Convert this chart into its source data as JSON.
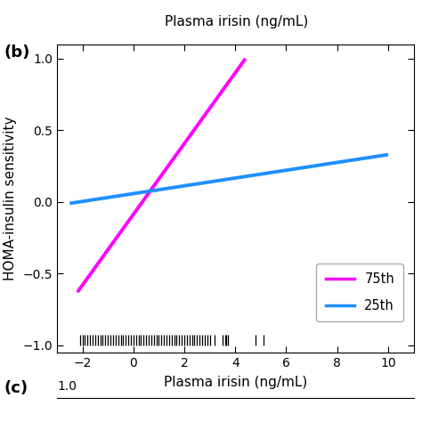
{
  "title_top": "Plasma irisin (ng/mL)",
  "xlabel": "Plasma irisin (ng/mL)",
  "ylabel": "HOMA-insulin sensitivity",
  "panel_label": "(b)",
  "xlim": [
    -3,
    11
  ],
  "ylim": [
    -1.05,
    1.1
  ],
  "xticks": [
    -2,
    0,
    2,
    4,
    6,
    8,
    10
  ],
  "yticks": [
    -1.0,
    -0.5,
    0.0,
    0.5,
    1.0
  ],
  "line_75th": {
    "x": [
      -2.2,
      4.4
    ],
    "y": [
      -0.63,
      1.0
    ],
    "color": "#FF00FF",
    "label": "75th",
    "linewidth": 2.8
  },
  "line_25th": {
    "x": [
      -2.5,
      10.0
    ],
    "y": [
      -0.01,
      0.33
    ],
    "color": "#1E90FF",
    "label": "25th",
    "linewidth": 2.8
  },
  "rug_x": [
    -2.1,
    -2.0,
    -1.9,
    -1.8,
    -1.7,
    -1.6,
    -1.5,
    -1.4,
    -1.3,
    -1.2,
    -1.1,
    -1.0,
    -0.9,
    -0.8,
    -0.7,
    -0.6,
    -0.5,
    -0.4,
    -0.3,
    -0.2,
    -0.1,
    0.0,
    0.1,
    0.2,
    0.3,
    0.4,
    0.5,
    0.6,
    0.7,
    0.8,
    0.9,
    1.0,
    1.1,
    1.2,
    1.3,
    1.4,
    1.5,
    1.6,
    1.7,
    1.8,
    1.9,
    2.0,
    2.1,
    2.2,
    2.3,
    2.4,
    2.5,
    2.6,
    2.7,
    2.8,
    2.9,
    3.0,
    3.2,
    3.5,
    3.6,
    3.65,
    3.7,
    4.8,
    5.1
  ],
  "background_color": "#ffffff",
  "legend_fontsize": 10.5,
  "tick_fontsize": 10,
  "label_fontsize": 11
}
